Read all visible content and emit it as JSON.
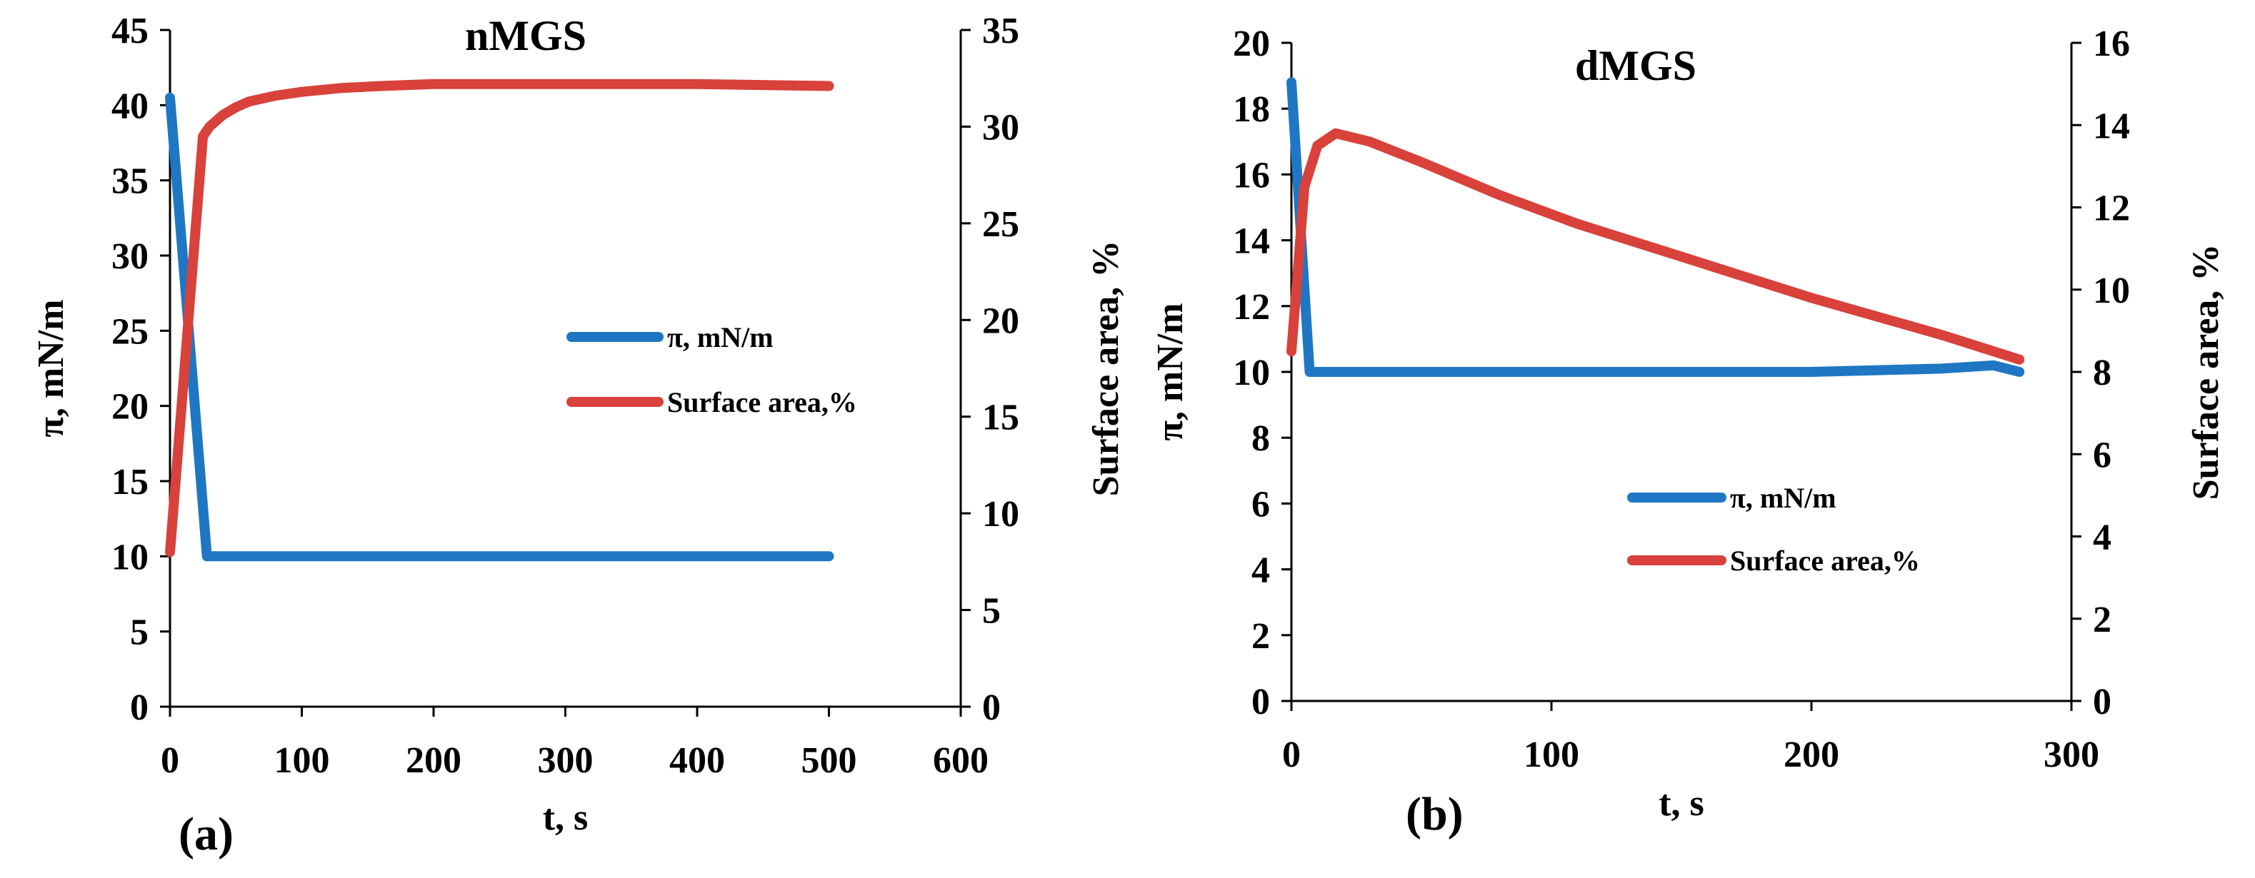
{
  "chart_data": [
    {
      "type": "line",
      "panel_label": "(a)",
      "title": "nMGS",
      "xlabel": "t, s",
      "ylabel_left": "π, mN/m",
      "ylabel_right": "Surface area, %",
      "xlim": [
        0,
        600
      ],
      "ylim_left": [
        0,
        45
      ],
      "ylim_right": [
        0,
        35
      ],
      "xticks": [
        0,
        100,
        200,
        300,
        400,
        500,
        600
      ],
      "yticks_left": [
        0,
        5,
        10,
        15,
        20,
        25,
        30,
        35,
        40,
        45
      ],
      "yticks_right": [
        0,
        5,
        10,
        15,
        20,
        25,
        30,
        35
      ],
      "legend_position": "center-right",
      "series": [
        {
          "name": "π, mN/m",
          "axis": "left",
          "color": "#1f77c4",
          "x": [
            0,
            28,
            50,
            100,
            200,
            300,
            400,
            500
          ],
          "y": [
            40.5,
            10,
            10,
            10,
            10,
            10,
            10,
            10
          ]
        },
        {
          "name": "Surface area,%",
          "axis": "right",
          "color": "#d9413b",
          "x": [
            0,
            25,
            30,
            40,
            50,
            60,
            80,
            100,
            130,
            160,
            200,
            250,
            300,
            400,
            500
          ],
          "y": [
            8,
            29.5,
            30,
            30.6,
            31,
            31.3,
            31.6,
            31.8,
            32,
            32.1,
            32.2,
            32.2,
            32.2,
            32.2,
            32.1
          ]
        }
      ]
    },
    {
      "type": "line",
      "panel_label": "(b)",
      "title": "dMGS",
      "xlabel": "t, s",
      "ylabel_left": "π, mN/m",
      "ylabel_right": "Surface area, %",
      "xlim": [
        0,
        300
      ],
      "ylim_left": [
        0,
        20
      ],
      "ylim_right": [
        0,
        16
      ],
      "xticks": [
        0,
        100,
        200,
        300
      ],
      "yticks_left": [
        0,
        2,
        4,
        6,
        8,
        10,
        12,
        14,
        16,
        18,
        20
      ],
      "yticks_right": [
        0,
        2,
        4,
        6,
        8,
        10,
        12,
        14,
        16
      ],
      "legend_position": "lower-center",
      "series": [
        {
          "name": "π, mN/m",
          "axis": "left",
          "color": "#1f77c4",
          "x": [
            0,
            7,
            20,
            50,
            100,
            150,
            200,
            250,
            270,
            280
          ],
          "y": [
            18.8,
            10,
            10,
            10,
            10,
            10,
            10,
            10.1,
            10.2,
            10
          ]
        },
        {
          "name": "Surface area,%",
          "axis": "right",
          "color": "#d9413b",
          "x": [
            0,
            5,
            10,
            17,
            30,
            50,
            80,
            110,
            150,
            200,
            250,
            280
          ],
          "y": [
            8.5,
            12.5,
            13.5,
            13.8,
            13.6,
            13.1,
            12.3,
            11.6,
            10.8,
            9.8,
            8.9,
            8.3
          ]
        }
      ]
    }
  ]
}
